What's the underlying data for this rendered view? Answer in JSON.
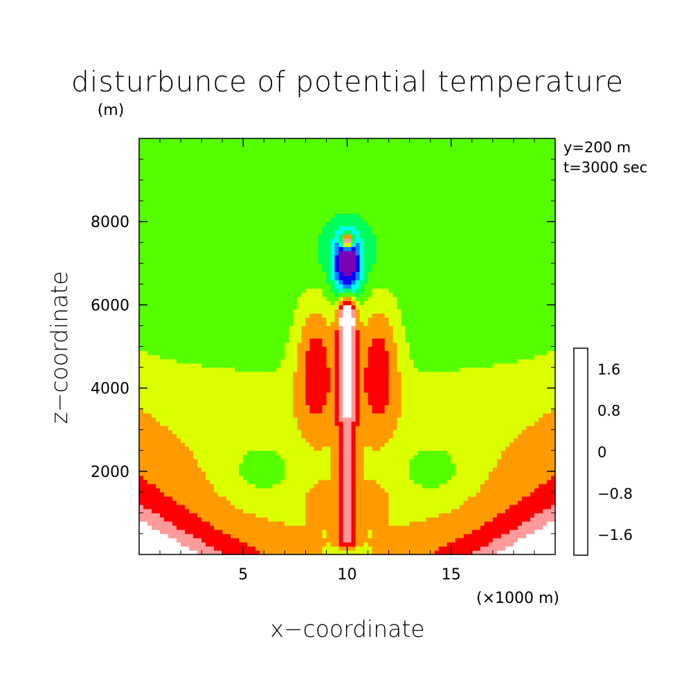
{
  "chart_data": {
    "type": "heatmap",
    "title": "disturbunce of potential temperature",
    "units": "(m)",
    "xlabel": "x−coordinate",
    "x_unit": "(×1000 m)",
    "ylabel": "z−coordinate",
    "annotations": [
      "y=200 m",
      "t=3000 sec"
    ],
    "xlim": [
      0,
      20
    ],
    "ylim": [
      0,
      10000
    ],
    "x_ticks": [
      5,
      10,
      15
    ],
    "x_tick_labels": [
      "5",
      "10",
      "15"
    ],
    "y_ticks": [
      2000,
      4000,
      6000,
      8000
    ],
    "y_tick_labels": [
      "2000",
      "4000",
      "6000",
      "8000"
    ],
    "colorbar": {
      "levels": [
        -2.0,
        -1.6,
        -1.2,
        -0.8,
        -0.4,
        0,
        0.4,
        0.8,
        1.2,
        1.6,
        2.0
      ],
      "tick_labels": [
        "−1.6",
        "−0.8",
        "0",
        "0.8",
        "1.6"
      ],
      "tick_values": [
        -1.6,
        -0.8,
        0,
        0.8,
        1.6
      ],
      "colors": [
        "#7a00b4",
        "#0a00ff",
        "#0a82ff",
        "#00ffee",
        "#00ff5a",
        "#55ff00",
        "#dcff00",
        "#ff9b00",
        "#ff0000",
        "#ff9a9a",
        "#ffffff"
      ]
    }
  }
}
